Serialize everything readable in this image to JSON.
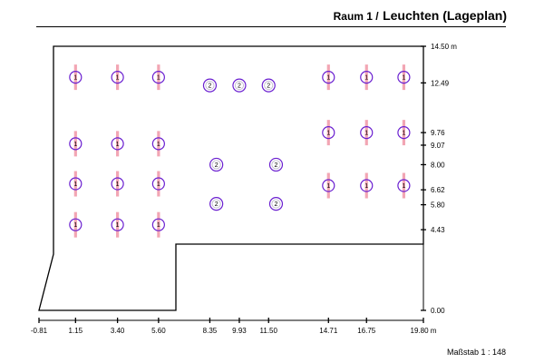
{
  "title": {
    "room": "Raum 1 /",
    "subject": "Leuchten (Lageplan)"
  },
  "scale_label": "Maßstab 1 : 148",
  "colors": {
    "outline": "#000000",
    "luminaire_ring": "#6a1fd0",
    "luminaire_bar": "#f2a6b4"
  },
  "x_axis": {
    "unit_label": "19.80 m",
    "ticks": [
      "-0.81",
      "1.15",
      "3.40",
      "5.60",
      "8.35",
      "9.93",
      "11.50",
      "14.71",
      "16.75"
    ]
  },
  "y_axis": {
    "unit_label": "14.50 m",
    "ticks": [
      "12.49",
      "9.76",
      "9.07",
      "8.00",
      "6.62",
      "5.80",
      "4.43",
      "0.00"
    ]
  },
  "luminaire_types": [
    "1",
    "2"
  ],
  "luminaires": [
    {
      "type": "1",
      "x": 1.15,
      "y": 12.8
    },
    {
      "type": "1",
      "x": 3.4,
      "y": 12.8
    },
    {
      "type": "1",
      "x": 5.6,
      "y": 12.8
    },
    {
      "type": "1",
      "x": 1.15,
      "y": 9.15
    },
    {
      "type": "1",
      "x": 3.4,
      "y": 9.15
    },
    {
      "type": "1",
      "x": 5.6,
      "y": 9.15
    },
    {
      "type": "1",
      "x": 1.15,
      "y": 6.95
    },
    {
      "type": "1",
      "x": 3.4,
      "y": 6.95
    },
    {
      "type": "1",
      "x": 5.6,
      "y": 6.95
    },
    {
      "type": "1",
      "x": 1.15,
      "y": 4.7
    },
    {
      "type": "1",
      "x": 3.4,
      "y": 4.7
    },
    {
      "type": "1",
      "x": 5.6,
      "y": 4.7
    },
    {
      "type": "2",
      "x": 8.35,
      "y": 12.35
    },
    {
      "type": "2",
      "x": 9.93,
      "y": 12.35
    },
    {
      "type": "2",
      "x": 11.5,
      "y": 12.35
    },
    {
      "type": "2",
      "x": 8.7,
      "y": 8.0
    },
    {
      "type": "2",
      "x": 11.9,
      "y": 8.0
    },
    {
      "type": "2",
      "x": 8.7,
      "y": 5.85
    },
    {
      "type": "2",
      "x": 11.9,
      "y": 5.85
    },
    {
      "type": "1",
      "x": 14.71,
      "y": 12.8
    },
    {
      "type": "1",
      "x": 16.75,
      "y": 12.8
    },
    {
      "type": "1",
      "x": 18.75,
      "y": 12.8
    },
    {
      "type": "1",
      "x": 14.71,
      "y": 9.76
    },
    {
      "type": "1",
      "x": 16.75,
      "y": 9.76
    },
    {
      "type": "1",
      "x": 18.75,
      "y": 9.76
    },
    {
      "type": "1",
      "x": 14.71,
      "y": 6.85
    },
    {
      "type": "1",
      "x": 16.75,
      "y": 6.85
    },
    {
      "type": "1",
      "x": 18.75,
      "y": 6.85
    }
  ]
}
